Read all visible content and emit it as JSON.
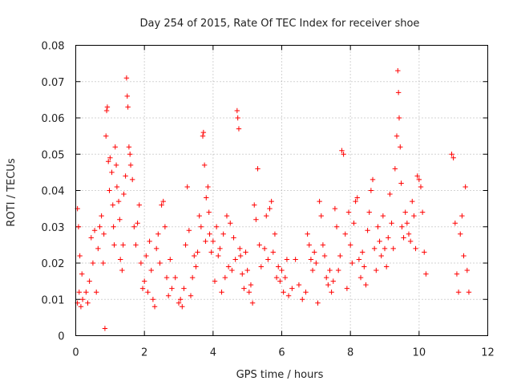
{
  "chart_data": {
    "type": "scatter",
    "title": "Day 254 of 2015, Rate Of TEC Index for receiver shoe",
    "xlabel": "GPS time / hours",
    "ylabel": "ROTI / TECUs",
    "xlim": [
      0,
      12
    ],
    "ylim": [
      0,
      0.08
    ],
    "x_ticks": [
      0,
      2,
      4,
      6,
      8,
      10,
      12
    ],
    "y_ticks": [
      0,
      0.01,
      0.02,
      0.03,
      0.04,
      0.05,
      0.06,
      0.07,
      0.08
    ],
    "x_tick_labels": [
      "0",
      "2",
      "4",
      "6",
      "8",
      "10",
      "12"
    ],
    "y_tick_labels": [
      "0",
      "0.01",
      "0.02",
      "0.03",
      "0.04",
      "0.05",
      "0.06",
      "0.07",
      "0.08"
    ],
    "grid": true,
    "marker": "+",
    "marker_color": "#ff0000",
    "series": [
      {
        "name": "ROTI",
        "color": "#ff0000",
        "points": [
          [
            0.05,
            0.035
          ],
          [
            0.08,
            0.03
          ],
          [
            0.12,
            0.022
          ],
          [
            0.1,
            0.012
          ],
          [
            0.15,
            0.008
          ],
          [
            0.05,
            0.009
          ],
          [
            0.2,
            0.01
          ],
          [
            0.18,
            0.017
          ],
          [
            0.3,
            0.012
          ],
          [
            0.35,
            0.009
          ],
          [
            0.4,
            0.015
          ],
          [
            0.45,
            0.027
          ],
          [
            0.5,
            0.02
          ],
          [
            0.55,
            0.029
          ],
          [
            0.6,
            0.012
          ],
          [
            0.65,
            0.024
          ],
          [
            0.7,
            0.03
          ],
          [
            0.75,
            0.033
          ],
          [
            0.8,
            0.02
          ],
          [
            0.82,
            0.028
          ],
          [
            0.85,
            0.002
          ],
          [
            0.88,
            0.055
          ],
          [
            0.9,
            0.062
          ],
          [
            0.92,
            0.063
          ],
          [
            0.95,
            0.048
          ],
          [
            0.98,
            0.04
          ],
          [
            1.0,
            0.049
          ],
          [
            1.05,
            0.045
          ],
          [
            1.08,
            0.036
          ],
          [
            1.1,
            0.03
          ],
          [
            1.12,
            0.025
          ],
          [
            1.15,
            0.052
          ],
          [
            1.18,
            0.047
          ],
          [
            1.2,
            0.041
          ],
          [
            1.25,
            0.037
          ],
          [
            1.28,
            0.032
          ],
          [
            1.3,
            0.021
          ],
          [
            1.35,
            0.018
          ],
          [
            1.38,
            0.025
          ],
          [
            1.4,
            0.039
          ],
          [
            1.45,
            0.044
          ],
          [
            1.48,
            0.071
          ],
          [
            1.5,
            0.066
          ],
          [
            1.52,
            0.063
          ],
          [
            1.55,
            0.052
          ],
          [
            1.58,
            0.05
          ],
          [
            1.6,
            0.047
          ],
          [
            1.65,
            0.043
          ],
          [
            1.7,
            0.03
          ],
          [
            1.75,
            0.025
          ],
          [
            1.8,
            0.031
          ],
          [
            1.85,
            0.036
          ],
          [
            1.9,
            0.02
          ],
          [
            1.95,
            0.013
          ],
          [
            2.0,
            0.015
          ],
          [
            2.05,
            0.022
          ],
          [
            2.1,
            0.012
          ],
          [
            2.15,
            0.026
          ],
          [
            2.2,
            0.018
          ],
          [
            2.25,
            0.01
          ],
          [
            2.3,
            0.008
          ],
          [
            2.35,
            0.024
          ],
          [
            2.4,
            0.028
          ],
          [
            2.45,
            0.02
          ],
          [
            2.5,
            0.036
          ],
          [
            2.55,
            0.037
          ],
          [
            2.6,
            0.03
          ],
          [
            2.65,
            0.016
          ],
          [
            2.7,
            0.011
          ],
          [
            2.75,
            0.021
          ],
          [
            2.8,
            0.013
          ],
          [
            2.9,
            0.016
          ],
          [
            3.0,
            0.009
          ],
          [
            3.05,
            0.01
          ],
          [
            3.1,
            0.008
          ],
          [
            3.15,
            0.013
          ],
          [
            3.2,
            0.025
          ],
          [
            3.25,
            0.041
          ],
          [
            3.3,
            0.029
          ],
          [
            3.35,
            0.011
          ],
          [
            3.4,
            0.016
          ],
          [
            3.45,
            0.022
          ],
          [
            3.5,
            0.019
          ],
          [
            3.55,
            0.023
          ],
          [
            3.6,
            0.033
          ],
          [
            3.65,
            0.03
          ],
          [
            3.7,
            0.055
          ],
          [
            3.72,
            0.056
          ],
          [
            3.75,
            0.047
          ],
          [
            3.78,
            0.026
          ],
          [
            3.8,
            0.038
          ],
          [
            3.85,
            0.041
          ],
          [
            3.88,
            0.034
          ],
          [
            3.9,
            0.028
          ],
          [
            3.95,
            0.023
          ],
          [
            4.0,
            0.026
          ],
          [
            4.05,
            0.015
          ],
          [
            4.1,
            0.03
          ],
          [
            4.15,
            0.022
          ],
          [
            4.2,
            0.024
          ],
          [
            4.25,
            0.012
          ],
          [
            4.3,
            0.028
          ],
          [
            4.35,
            0.016
          ],
          [
            4.4,
            0.033
          ],
          [
            4.45,
            0.019
          ],
          [
            4.5,
            0.031
          ],
          [
            4.55,
            0.018
          ],
          [
            4.6,
            0.027
          ],
          [
            4.65,
            0.021
          ],
          [
            4.7,
            0.062
          ],
          [
            4.72,
            0.06
          ],
          [
            4.75,
            0.057
          ],
          [
            4.78,
            0.024
          ],
          [
            4.8,
            0.022
          ],
          [
            4.85,
            0.017
          ],
          [
            4.9,
            0.013
          ],
          [
            4.95,
            0.023
          ],
          [
            5.0,
            0.018
          ],
          [
            5.05,
            0.012
          ],
          [
            5.1,
            0.014
          ],
          [
            5.15,
            0.009
          ],
          [
            5.2,
            0.036
          ],
          [
            5.25,
            0.032
          ],
          [
            5.3,
            0.046
          ],
          [
            5.35,
            0.025
          ],
          [
            5.4,
            0.019
          ],
          [
            5.5,
            0.024
          ],
          [
            5.55,
            0.033
          ],
          [
            5.6,
            0.021
          ],
          [
            5.65,
            0.035
          ],
          [
            5.7,
            0.037
          ],
          [
            5.75,
            0.023
          ],
          [
            5.8,
            0.028
          ],
          [
            5.85,
            0.016
          ],
          [
            5.9,
            0.019
          ],
          [
            5.95,
            0.015
          ],
          [
            6.0,
            0.018
          ],
          [
            6.05,
            0.012
          ],
          [
            6.1,
            0.016
          ],
          [
            6.15,
            0.021
          ],
          [
            6.2,
            0.011
          ],
          [
            6.3,
            0.013
          ],
          [
            6.4,
            0.021
          ],
          [
            6.5,
            0.014
          ],
          [
            6.6,
            0.01
          ],
          [
            6.7,
            0.012
          ],
          [
            6.75,
            0.028
          ],
          [
            6.8,
            0.025
          ],
          [
            6.85,
            0.021
          ],
          [
            6.9,
            0.018
          ],
          [
            6.95,
            0.023
          ],
          [
            7.0,
            0.02
          ],
          [
            7.05,
            0.009
          ],
          [
            7.1,
            0.037
          ],
          [
            7.15,
            0.033
          ],
          [
            7.2,
            0.025
          ],
          [
            7.25,
            0.022
          ],
          [
            7.3,
            0.016
          ],
          [
            7.35,
            0.014
          ],
          [
            7.4,
            0.018
          ],
          [
            7.45,
            0.012
          ],
          [
            7.5,
            0.015
          ],
          [
            7.55,
            0.035
          ],
          [
            7.6,
            0.03
          ],
          [
            7.65,
            0.018
          ],
          [
            7.7,
            0.022
          ],
          [
            7.75,
            0.051
          ],
          [
            7.8,
            0.05
          ],
          [
            7.85,
            0.028
          ],
          [
            7.9,
            0.013
          ],
          [
            7.95,
            0.034
          ],
          [
            8.0,
            0.025
          ],
          [
            8.05,
            0.02
          ],
          [
            8.1,
            0.031
          ],
          [
            8.15,
            0.037
          ],
          [
            8.2,
            0.038
          ],
          [
            8.25,
            0.021
          ],
          [
            8.3,
            0.016
          ],
          [
            8.35,
            0.023
          ],
          [
            8.4,
            0.019
          ],
          [
            8.45,
            0.014
          ],
          [
            8.5,
            0.029
          ],
          [
            8.55,
            0.034
          ],
          [
            8.6,
            0.04
          ],
          [
            8.65,
            0.043
          ],
          [
            8.7,
            0.024
          ],
          [
            8.75,
            0.018
          ],
          [
            8.8,
            0.03
          ],
          [
            8.85,
            0.026
          ],
          [
            8.9,
            0.022
          ],
          [
            8.95,
            0.033
          ],
          [
            9.0,
            0.024
          ],
          [
            9.05,
            0.019
          ],
          [
            9.1,
            0.027
          ],
          [
            9.15,
            0.039
          ],
          [
            9.2,
            0.031
          ],
          [
            9.25,
            0.024
          ],
          [
            9.3,
            0.046
          ],
          [
            9.35,
            0.055
          ],
          [
            9.38,
            0.073
          ],
          [
            9.4,
            0.067
          ],
          [
            9.42,
            0.06
          ],
          [
            9.45,
            0.052
          ],
          [
            9.48,
            0.042
          ],
          [
            9.5,
            0.03
          ],
          [
            9.55,
            0.027
          ],
          [
            9.6,
            0.034
          ],
          [
            9.65,
            0.031
          ],
          [
            9.7,
            0.028
          ],
          [
            9.75,
            0.026
          ],
          [
            9.8,
            0.037
          ],
          [
            9.85,
            0.033
          ],
          [
            9.9,
            0.024
          ],
          [
            9.95,
            0.044
          ],
          [
            10.0,
            0.043
          ],
          [
            10.05,
            0.041
          ],
          [
            10.1,
            0.034
          ],
          [
            10.15,
            0.023
          ],
          [
            10.2,
            0.017
          ],
          [
            10.95,
            0.05
          ],
          [
            11.0,
            0.049
          ],
          [
            11.05,
            0.031
          ],
          [
            11.1,
            0.017
          ],
          [
            11.15,
            0.012
          ],
          [
            11.2,
            0.028
          ],
          [
            11.25,
            0.033
          ],
          [
            11.3,
            0.022
          ],
          [
            11.35,
            0.041
          ],
          [
            11.4,
            0.018
          ],
          [
            11.45,
            0.012
          ]
        ]
      }
    ]
  }
}
